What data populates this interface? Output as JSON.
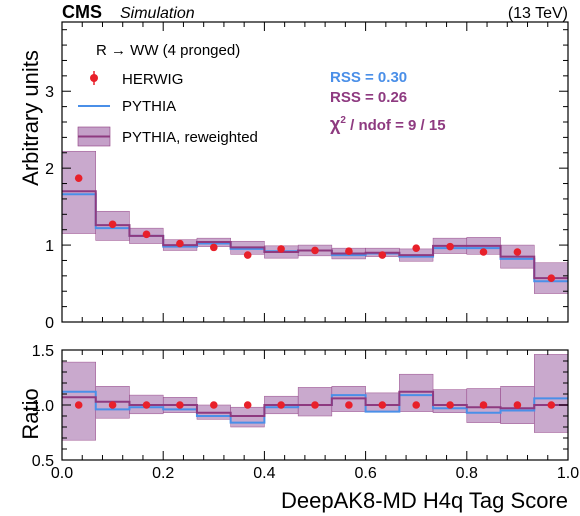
{
  "header": {
    "cms": "CMS",
    "simulation": "Simulation",
    "energy": "(13 TeV)"
  },
  "legend": {
    "title": "R  → WW (4 pronged)",
    "herwig": "HERWIG",
    "pythia": "PYTHIA",
    "pythia_rw": "PYTHIA, reweighted"
  },
  "stats": {
    "rss_pythia": "RSS = 0.30",
    "rss_rw": "RSS = 0.26",
    "chi2_prefix": "χ",
    "chi2_sup": "2",
    "chi2_rest": " / ndof = 9 / 15"
  },
  "colors": {
    "herwig": "#e8202a",
    "pythia": "#4a8fe8",
    "pythia_rw": "#8e3a80",
    "band": "#c4a0c8"
  },
  "chart_data": {
    "type": "line",
    "bin_edges": [
      0.0,
      0.0667,
      0.1333,
      0.2,
      0.2667,
      0.3333,
      0.4,
      0.4667,
      0.5333,
      0.6,
      0.6667,
      0.7333,
      0.8,
      0.8667,
      0.9333,
      1.0
    ],
    "x_centers": [
      0.033,
      0.1,
      0.167,
      0.233,
      0.3,
      0.367,
      0.433,
      0.5,
      0.567,
      0.633,
      0.7,
      0.767,
      0.833,
      0.9,
      0.967
    ],
    "xlabel": "DeepAK8-MD H4q Tag Score",
    "xlim": [
      0,
      1
    ],
    "x_ticks": [
      "0.0",
      "0.2",
      "0.4",
      "0.6",
      "0.8",
      "1.0"
    ],
    "main": {
      "ylabel": "Arbitrary units",
      "ylim": [
        0,
        3.9
      ],
      "y_ticks": [
        "0",
        "1",
        "2",
        "3"
      ],
      "series": [
        {
          "name": "HERWIG",
          "style": "points",
          "values": [
            1.87,
            1.27,
            1.14,
            1.02,
            0.97,
            0.87,
            0.95,
            0.93,
            0.92,
            0.87,
            0.96,
            0.98,
            0.91,
            0.91,
            0.57
          ]
        },
        {
          "name": "PYTHIA",
          "style": "step",
          "values": [
            1.66,
            1.22,
            1.12,
            0.98,
            1.02,
            0.95,
            0.92,
            0.93,
            0.87,
            0.89,
            0.85,
            0.96,
            0.96,
            0.82,
            0.53
          ]
        },
        {
          "name": "PYTHIA, reweighted",
          "style": "step_band",
          "values": [
            1.7,
            1.26,
            1.12,
            1.0,
            1.04,
            0.97,
            0.91,
            0.93,
            0.89,
            0.9,
            0.87,
            0.99,
            0.99,
            0.85,
            0.57
          ],
          "band_low": [
            1.15,
            1.06,
            1.02,
            0.93,
            0.98,
            0.88,
            0.83,
            0.86,
            0.82,
            0.85,
            0.79,
            0.89,
            0.88,
            0.7,
            0.37
          ],
          "band_high": [
            2.22,
            1.44,
            1.22,
            1.07,
            1.09,
            1.05,
            0.99,
            1.0,
            0.96,
            0.96,
            0.95,
            1.09,
            1.1,
            1.0,
            0.77
          ]
        }
      ]
    },
    "ratio": {
      "ylabel": "Ratio",
      "ylim": [
        0.5,
        1.5
      ],
      "y_ticks": [
        "0.5",
        "1.0",
        "1.5"
      ],
      "series": [
        {
          "name": "HERWIG",
          "style": "points",
          "values": [
            1.0,
            1.0,
            1.0,
            1.0,
            1.0,
            1.0,
            1.0,
            1.0,
            1.0,
            1.0,
            1.0,
            1.0,
            1.0,
            1.0,
            1.0
          ]
        },
        {
          "name": "PYTHIA",
          "style": "step",
          "values": [
            1.12,
            0.96,
            0.98,
            0.96,
            0.9,
            0.84,
            0.98,
            1.0,
            1.09,
            0.94,
            1.09,
            0.97,
            0.93,
            0.95,
            1.06
          ]
        },
        {
          "name": "PYTHIA, reweighted",
          "style": "step_band",
          "values": [
            1.07,
            1.03,
            1.0,
            1.0,
            0.93,
            0.9,
            1.0,
            1.0,
            1.06,
            1.0,
            1.12,
            1.0,
            0.98,
            0.97,
            1.0
          ],
          "band_low": [
            0.68,
            0.88,
            0.92,
            0.93,
            0.87,
            0.8,
            0.92,
            0.9,
            0.94,
            0.94,
            0.94,
            0.93,
            0.84,
            0.83,
            0.75
          ],
          "band_high": [
            1.39,
            1.17,
            1.09,
            1.07,
            1.0,
            0.98,
            1.08,
            1.16,
            1.17,
            1.11,
            1.28,
            1.14,
            1.15,
            1.17,
            1.46
          ]
        }
      ]
    }
  }
}
